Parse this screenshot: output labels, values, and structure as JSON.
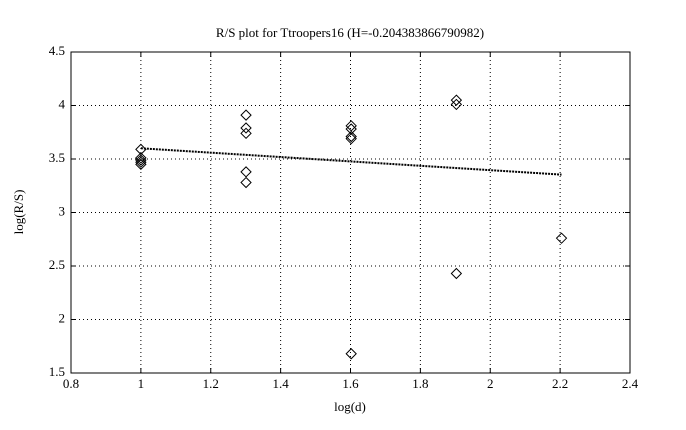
{
  "chart_data": {
    "type": "scatter",
    "title": "R/S plot for Ttroopers16 (H=-0.204383866790982)",
    "x_label": "log(d)",
    "y_label": "log(R/S)",
    "points": {
      "marker": "diamond",
      "color": "#000000",
      "x": [
        1,
        1,
        1,
        1,
        1,
        1.301,
        1.301,
        1.301,
        1.301,
        1.301,
        1.602,
        1.602,
        1.602,
        1.602,
        1.602,
        1.903,
        1.903,
        1.903,
        2.204
      ],
      "values": [
        3.59,
        3.51,
        3.49,
        3.47,
        3.45,
        3.91,
        3.79,
        3.74,
        3.38,
        3.28,
        3.81,
        3.78,
        3.71,
        3.69,
        1.68,
        4.05,
        4.01,
        2.43,
        2.76
      ]
    },
    "fit": {
      "color": "#000000",
      "x": [
        1,
        2.204
      ],
      "values": [
        3.6,
        3.354
      ]
    },
    "xlim": [
      0.8,
      2.4
    ],
    "xticks": [
      {
        "value": 0.8,
        "label": "0.8"
      },
      1,
      1.2,
      1.4,
      1.6,
      1.8,
      2,
      2.2,
      2.4
    ],
    "ylim": [
      1.5,
      4.5
    ],
    "yticks": [
      1.5,
      2,
      2.5,
      3,
      3.5,
      4,
      4.5
    ],
    "grid": true
  }
}
